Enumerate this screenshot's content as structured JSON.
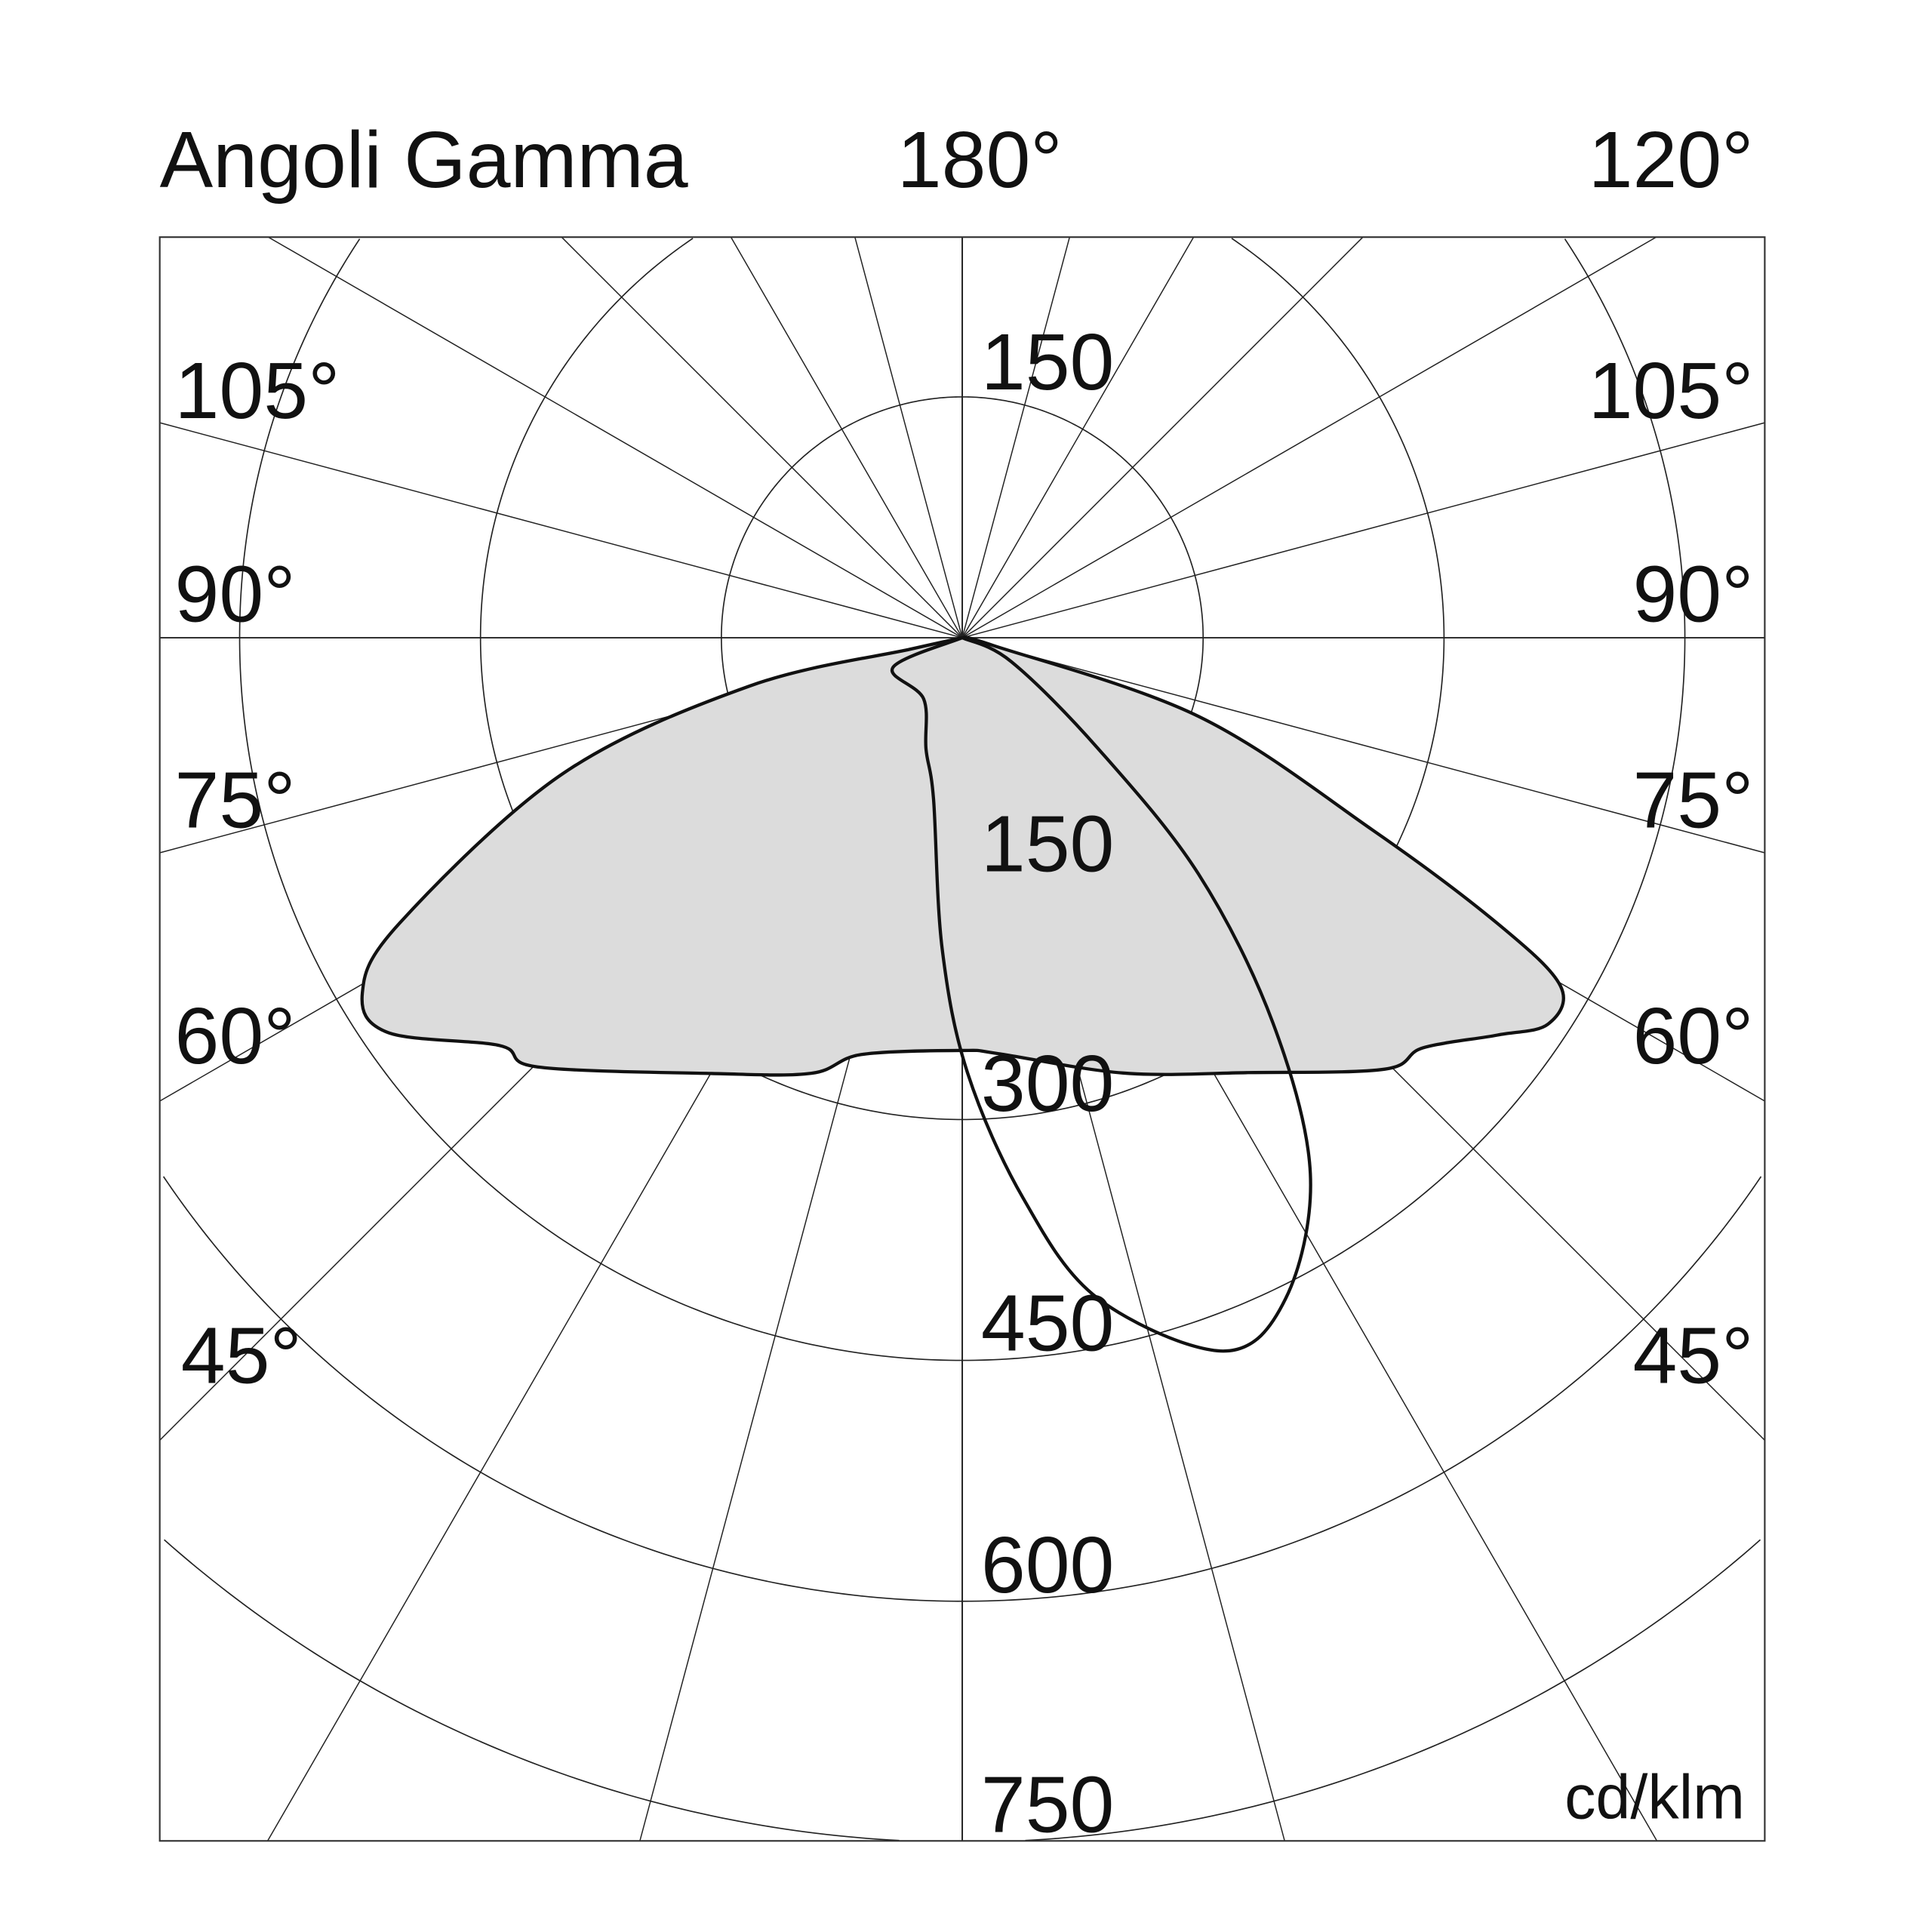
{
  "chart_data": {
    "type": "polar",
    "title": "Angoli Gamma",
    "top_labels": {
      "center": "180°",
      "right": "120°"
    },
    "unit": "cd/klm",
    "radial_ticks": [
      150,
      300,
      450,
      600,
      750
    ],
    "radial_tick_labels": {
      "top": "150",
      "inner": [
        "150",
        "300",
        "450",
        "600",
        "750"
      ]
    },
    "angle_labels_left": [
      "105°",
      "90°",
      "75°",
      "60°",
      "45°"
    ],
    "angle_labels_right": [
      "105°",
      "90°",
      "75°",
      "60°",
      "45°"
    ],
    "angle_step_deg": 15,
    "grid": true,
    "series": [
      {
        "fill": "#dcdcdc",
        "stroke": "#111111",
        "points": [
          [
            -77.6,
            33
          ],
          [
            -77.2,
            136
          ],
          [
            -71.2,
            263
          ],
          [
            -63.1,
            393
          ],
          [
            -59.4,
            434
          ],
          [
            -55.5,
            434
          ],
          [
            -48.6,
            384
          ],
          [
            -44.7,
            376
          ],
          [
            -29.9,
            313
          ],
          [
            -19.1,
            287
          ],
          [
            -13.6,
            267
          ],
          [
            0,
            257
          ],
          [
            5,
            260
          ],
          [
            20.3,
            289
          ],
          [
            33.3,
            324
          ],
          [
            44.4,
            376
          ],
          [
            48.3,
            384
          ],
          [
            53.4,
            415
          ],
          [
            56.6,
            437
          ],
          [
            59.8,
            431
          ],
          [
            61.9,
            378
          ],
          [
            64.9,
            282
          ],
          [
            71.6,
            155
          ],
          [
            76,
            20
          ]
        ]
      },
      {
        "fill": "none",
        "stroke": "#111111",
        "points": [
          [
            -66.8,
            47
          ],
          [
            -32.3,
            45
          ],
          [
            -18,
            73
          ],
          [
            -10.1,
            102
          ],
          [
            -3.7,
            194
          ],
          [
            0.7,
            271
          ],
          [
            6.2,
            351
          ],
          [
            11.6,
            420
          ],
          [
            20.1,
            473
          ],
          [
            26.1,
            458
          ],
          [
            33,
            398
          ],
          [
            38.9,
            308
          ],
          [
            45,
            208
          ],
          [
            50.8,
            109
          ],
          [
            64,
            34
          ]
        ]
      }
    ]
  }
}
